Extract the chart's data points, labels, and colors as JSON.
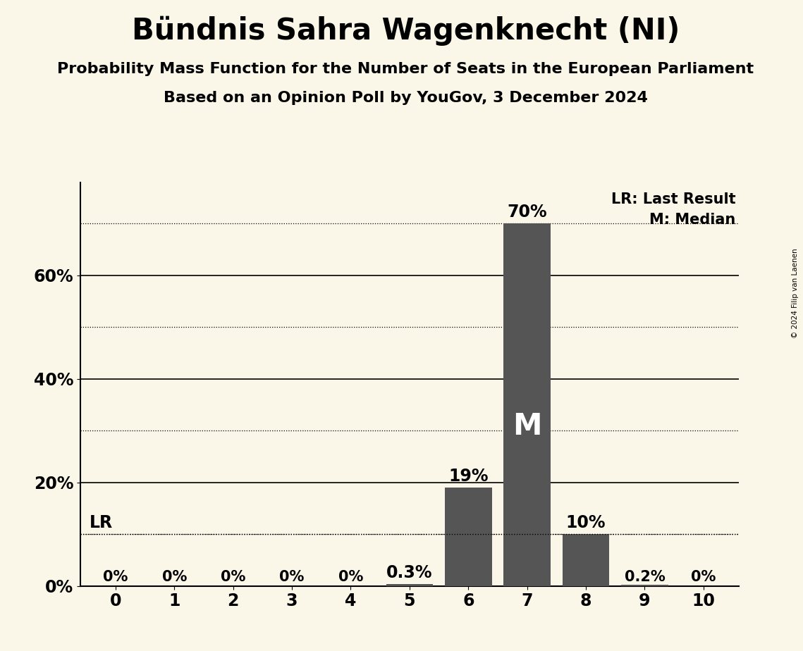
{
  "title": "Bündnis Sahra Wagenknecht (NI)",
  "subtitle1": "Probability Mass Function for the Number of Seats in the European Parliament",
  "subtitle2": "Based on an Opinion Poll by YouGov, 3 December 2024",
  "copyright": "© 2024 Filip van Laenen",
  "seats": [
    0,
    1,
    2,
    3,
    4,
    5,
    6,
    7,
    8,
    9,
    10
  ],
  "probabilities": [
    0.0,
    0.0,
    0.0,
    0.0,
    0.0,
    0.003,
    0.19,
    0.7,
    0.1,
    0.002,
    0.0
  ],
  "bar_labels": [
    "0%",
    "0%",
    "0%",
    "0%",
    "0%",
    "0.3%",
    "19%",
    "70%",
    "10%",
    "0.2%",
    "0%"
  ],
  "bar_color": "#555555",
  "median_seat": 7,
  "last_result_value": 0.1,
  "background_color": "#faf6e8",
  "yticks": [
    0.0,
    0.2,
    0.4,
    0.6
  ],
  "ytick_labels": [
    "0%",
    "20%",
    "40%",
    "60%"
  ],
  "ylim": [
    0,
    0.78
  ],
  "solid_lines": [
    0.2,
    0.4,
    0.6
  ],
  "dotted_lines": [
    0.1,
    0.3,
    0.5,
    0.7
  ],
  "legend_lr": "LR: Last Result",
  "legend_m": "M: Median",
  "median_label": "M",
  "title_fontsize": 30,
  "subtitle_fontsize": 16,
  "label_fontsize": 15,
  "tick_fontsize": 17
}
